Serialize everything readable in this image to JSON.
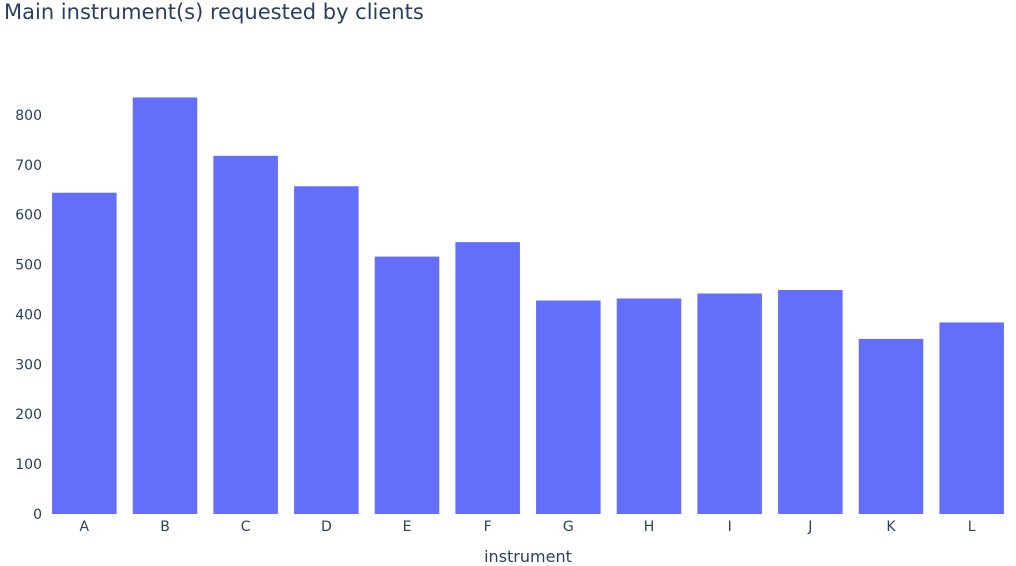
{
  "title": "Main instrument(s) requested by clients",
  "chart_data": {
    "type": "bar",
    "title": "Main instrument(s) requested by clients",
    "xlabel": "instrument",
    "ylabel": "",
    "categories": [
      "A",
      "B",
      "C",
      "D",
      "E",
      "F",
      "G",
      "H",
      "I",
      "J",
      "K",
      "L"
    ],
    "values": [
      644,
      835,
      718,
      657,
      516,
      545,
      428,
      432,
      442,
      449,
      351,
      384
    ],
    "ylim": [
      0,
      880
    ],
    "yticks": [
      0,
      100,
      200,
      300,
      400,
      500,
      600,
      700,
      800
    ],
    "grid": false,
    "legend": "none",
    "bar_color": "#636efa"
  }
}
